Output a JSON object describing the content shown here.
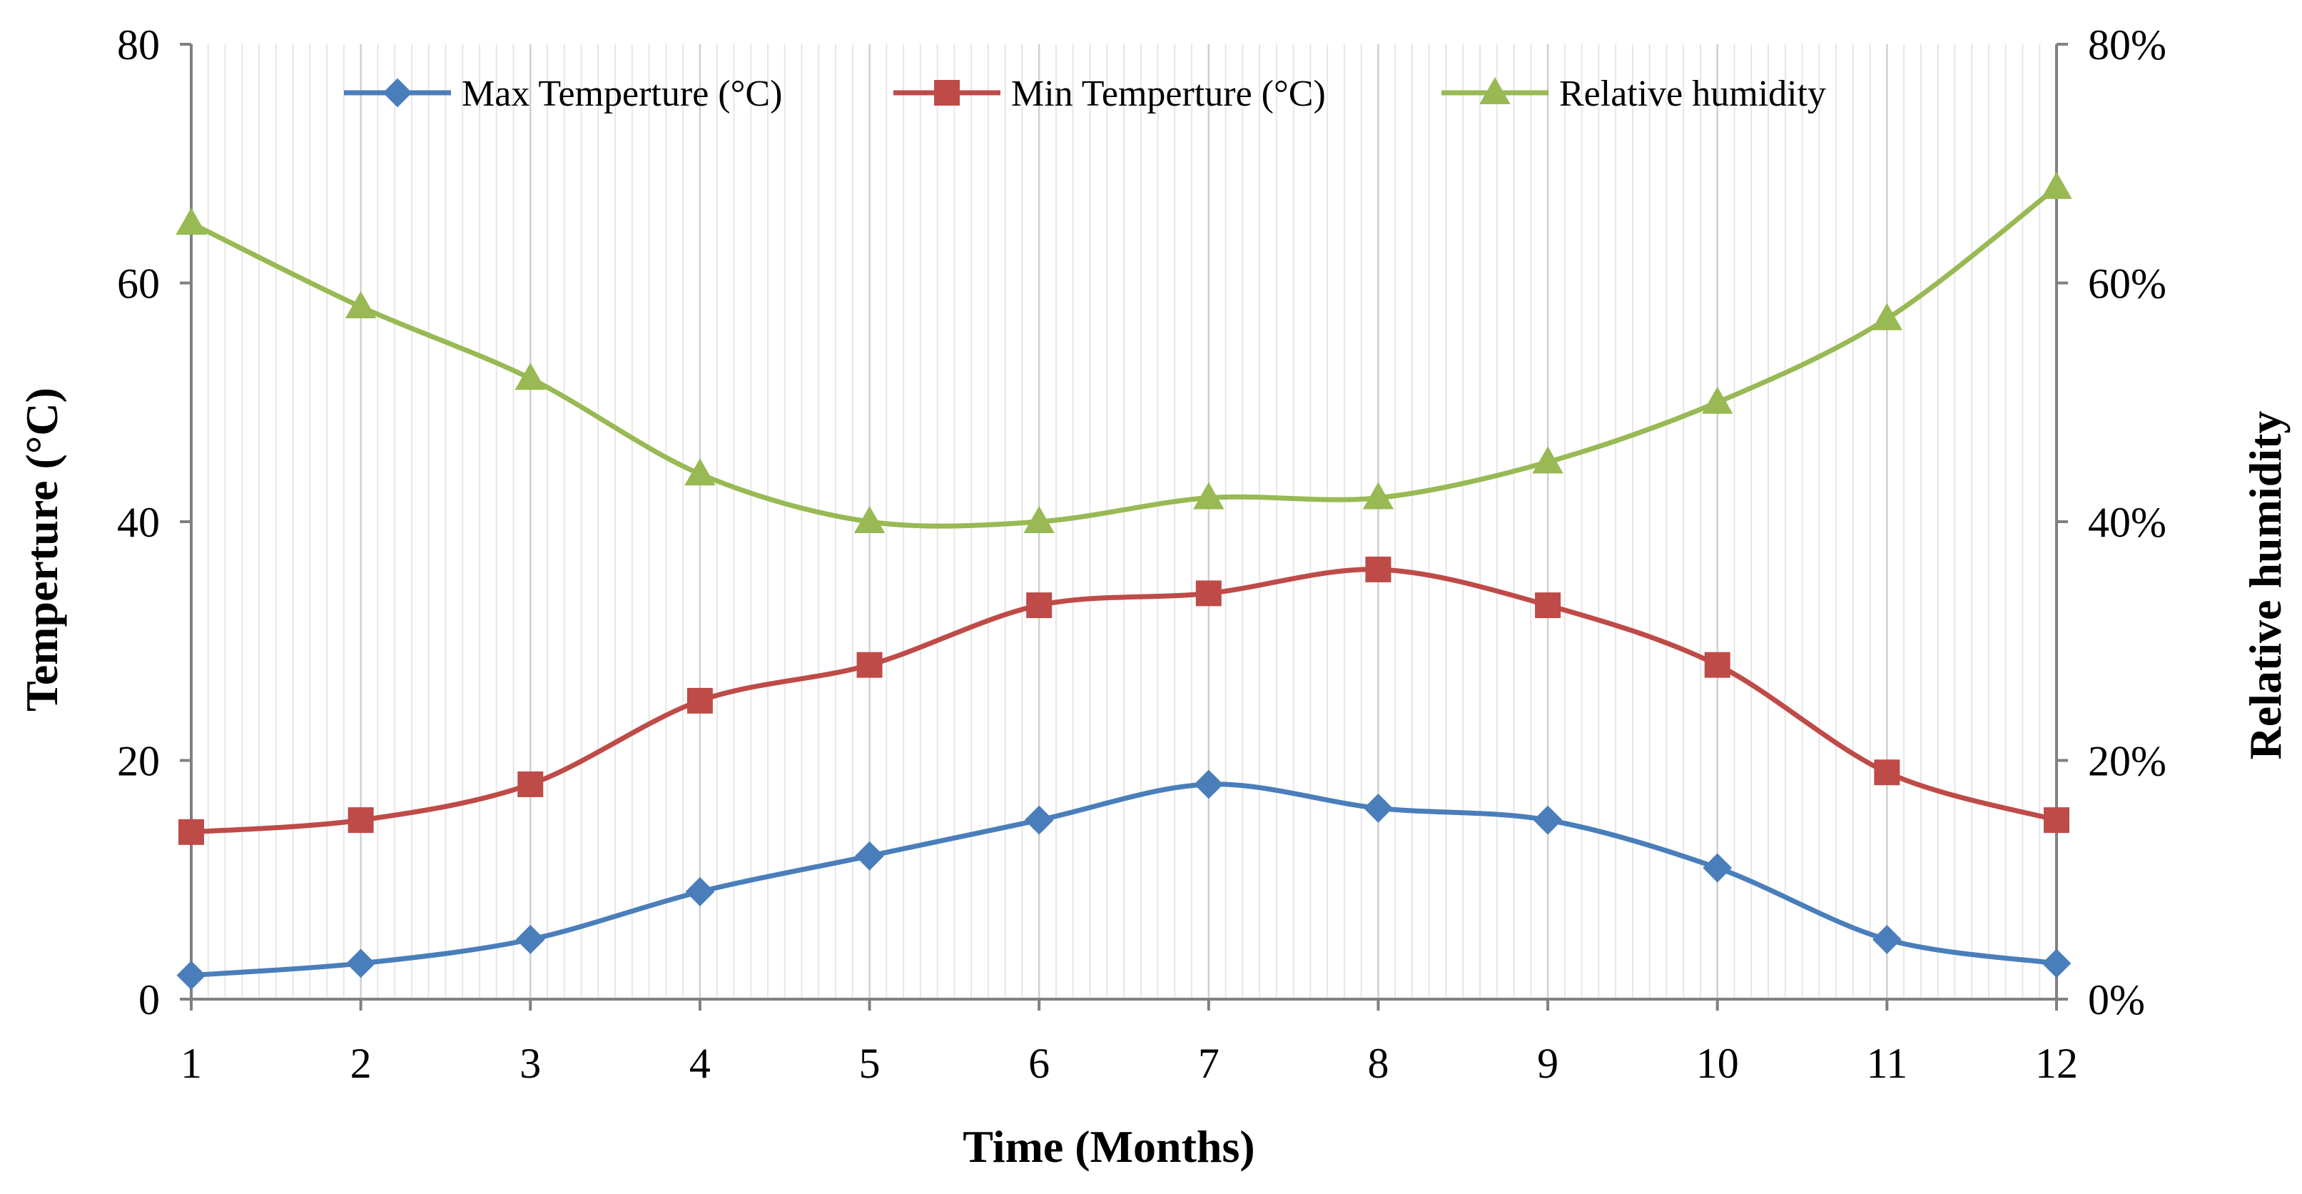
{
  "chart_data": {
    "type": "line",
    "title": "",
    "xlabel": "Time (Months)",
    "ylabel": "Temperture (°C)",
    "y2label": "Relative humidity",
    "x": [
      1,
      2,
      3,
      4,
      5,
      6,
      7,
      8,
      9,
      10,
      11,
      12
    ],
    "x_ticks": [
      "1",
      "2",
      "3",
      "4",
      "5",
      "6",
      "7",
      "8",
      "9",
      "10",
      "11",
      "12"
    ],
    "ylim": [
      0,
      80
    ],
    "y_ticks": [
      "0",
      "20",
      "40",
      "60",
      "80"
    ],
    "y2lim": [
      0,
      80
    ],
    "y2_ticks": [
      "0%",
      "20%",
      "40%",
      "60%",
      "80%"
    ],
    "grid": "vertical minor gridlines",
    "legend_position": "top-center",
    "series": [
      {
        "name": "Max Temperture (°C)",
        "axis": "left",
        "marker": "diamond",
        "color": "#4a7ebb",
        "values": [
          2,
          3,
          5,
          9,
          12,
          15,
          18,
          16,
          15,
          11,
          5,
          3
        ]
      },
      {
        "name": "Min Temperture (°C)",
        "axis": "left",
        "marker": "square",
        "color": "#be4b48",
        "values": [
          14,
          15,
          18,
          25,
          28,
          33,
          34,
          36,
          33,
          28,
          19,
          15
        ]
      },
      {
        "name": "Relative humidity",
        "axis": "right",
        "unit": "%",
        "marker": "triangle",
        "color": "#98b954",
        "values": [
          65,
          58,
          52,
          44,
          40,
          40,
          42,
          42,
          45,
          50,
          57,
          68
        ]
      }
    ]
  }
}
